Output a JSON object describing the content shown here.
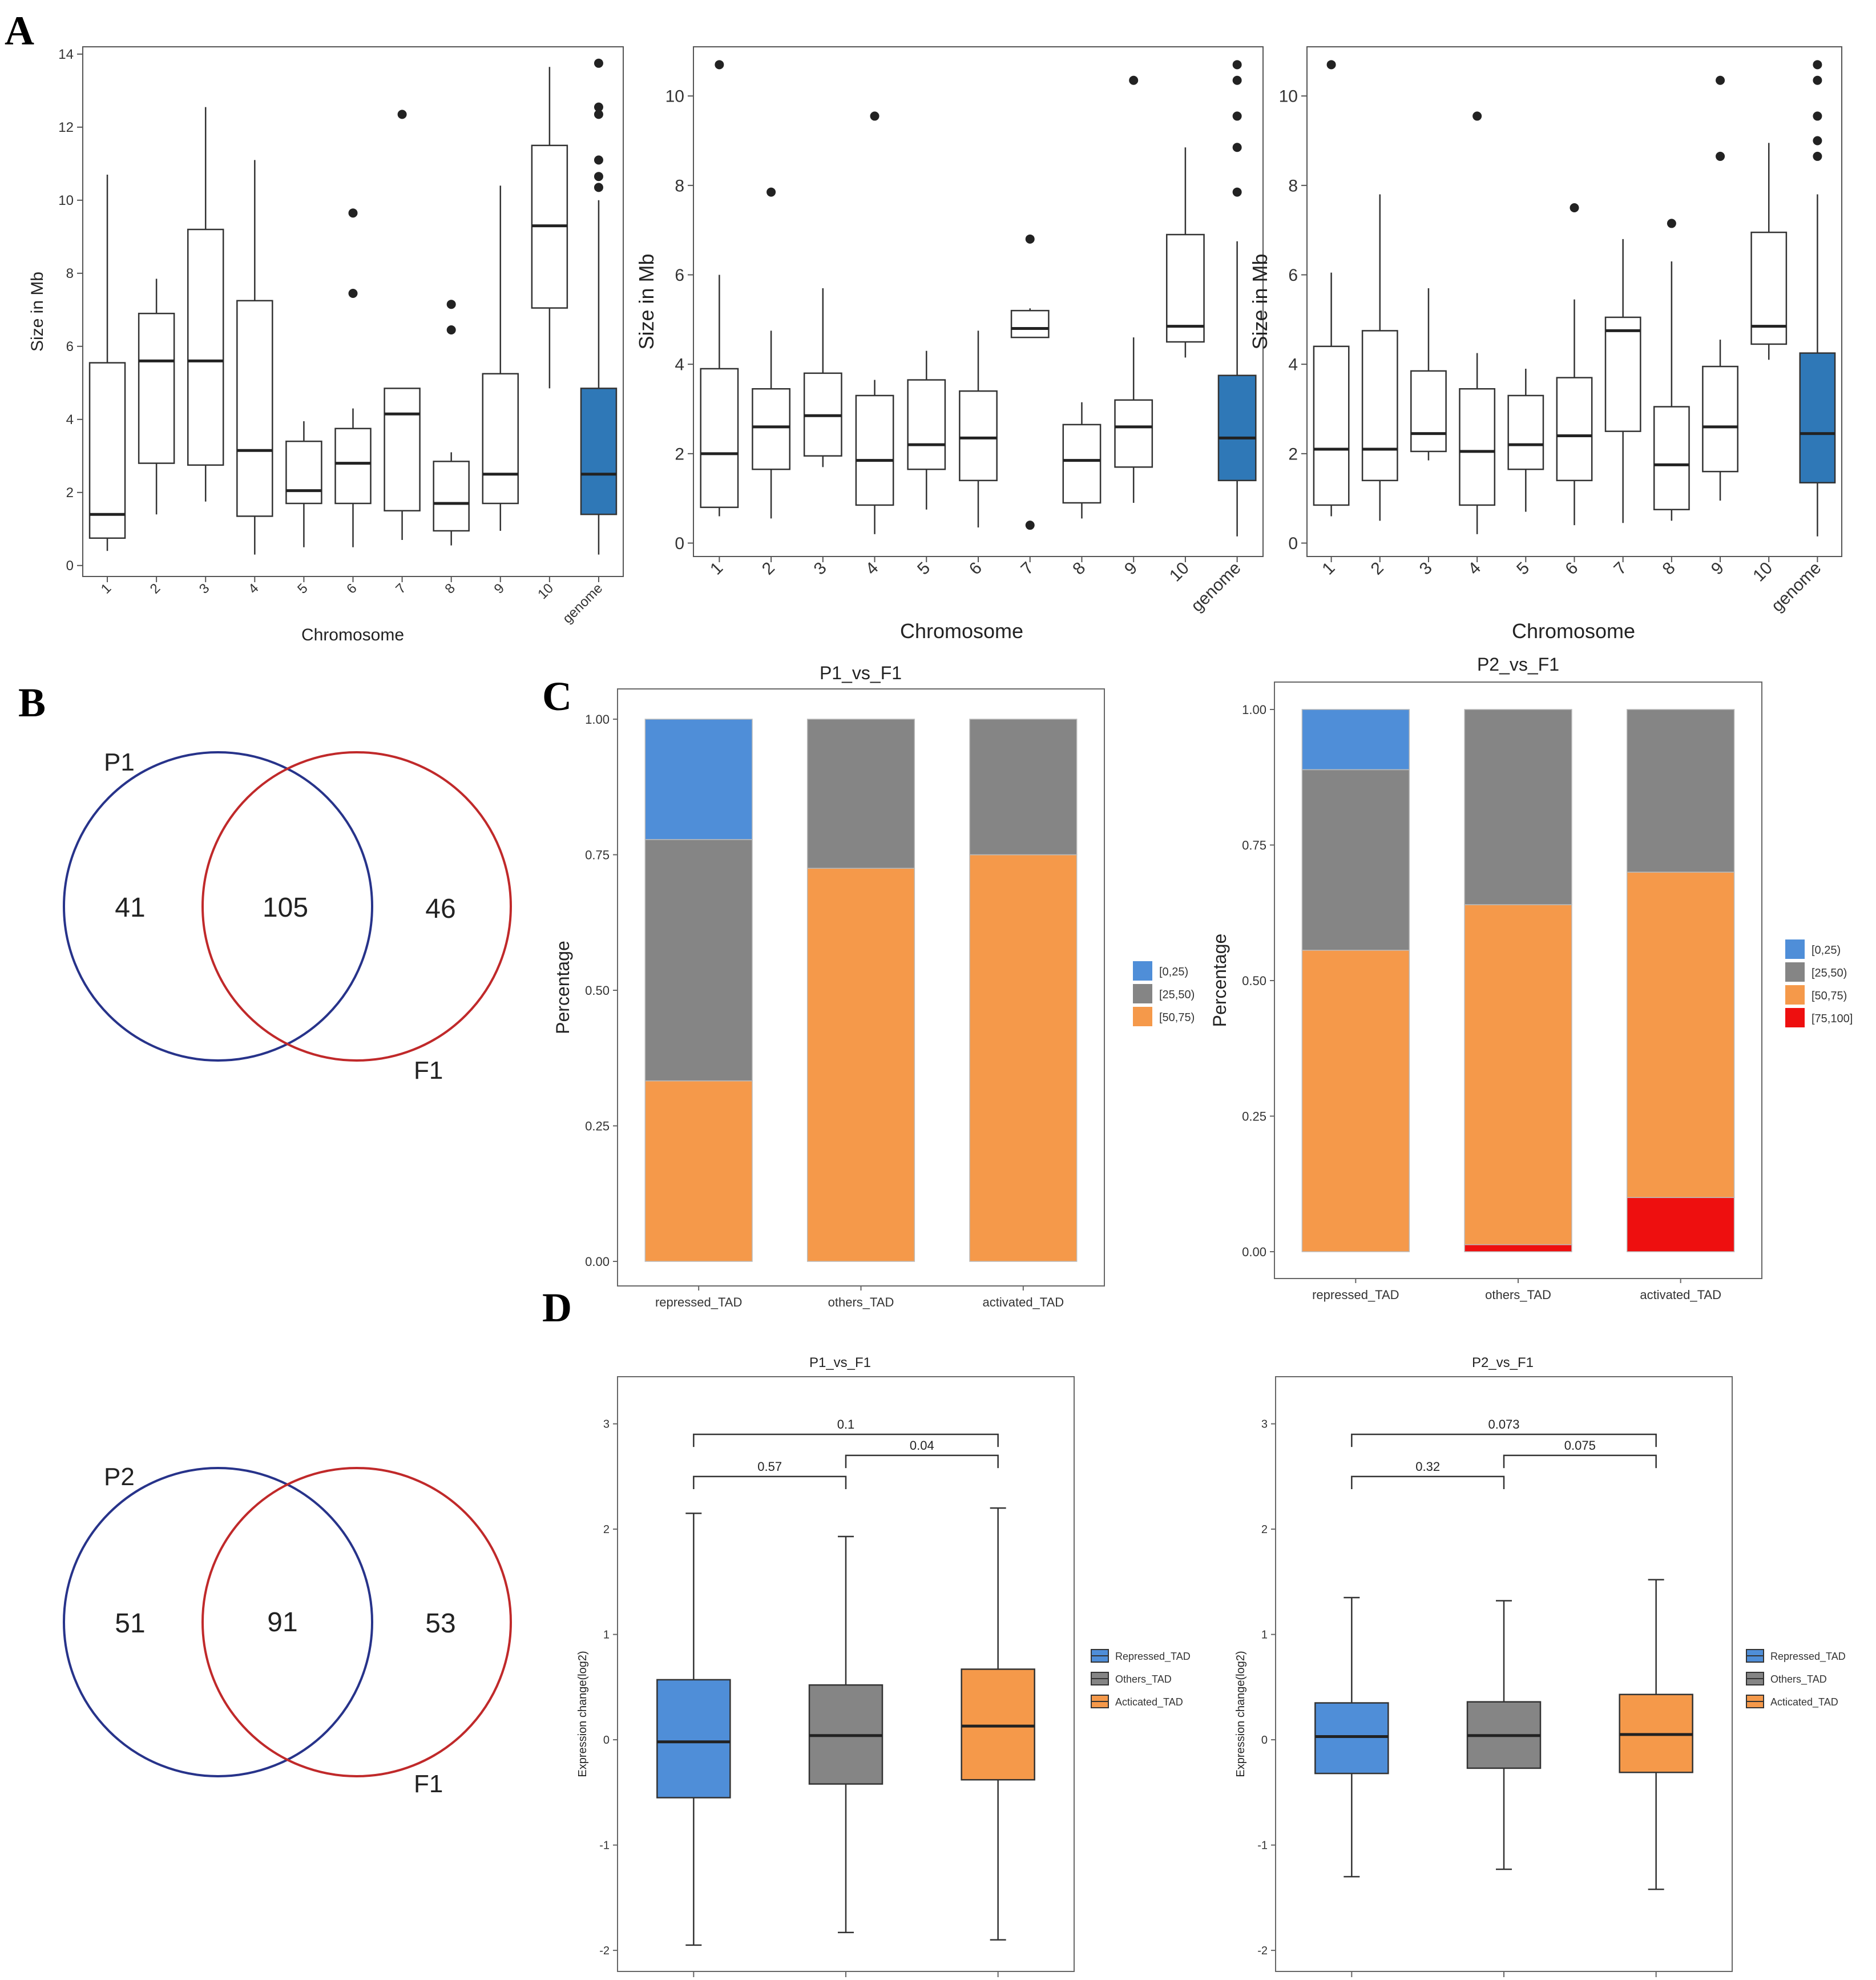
{
  "figure": {
    "panel_labels": {
      "a": "A",
      "b": "B",
      "c": "C",
      "d": "D"
    }
  },
  "colors": {
    "blue_box": "#2f78b7",
    "cat_blue": "#4f8ed8",
    "cat_gray": "#858585",
    "cat_orange": "#f5994a",
    "cat_red": "#ee0f0f",
    "venn_blue": "#27338a",
    "venn_red": "#c0292a",
    "axis": "#444444",
    "text": "#222222"
  },
  "chart_data": [
    {
      "id": "A1",
      "type": "boxplot",
      "xlabel": "Chromosome",
      "ylabel": "Size in Mb",
      "categories": [
        "1",
        "2",
        "3",
        "4",
        "5",
        "6",
        "7",
        "8",
        "9",
        "10",
        "genome"
      ],
      "ylim": [
        -0.3,
        14.2
      ],
      "yticks": [
        0,
        2,
        4,
        6,
        8,
        10,
        12,
        14
      ],
      "boxes": [
        {
          "lw": 0.4,
          "q1": 0.75,
          "med": 1.4,
          "q3": 5.55,
          "hw": 10.7,
          "out": []
        },
        {
          "lw": 1.4,
          "q1": 2.8,
          "med": 5.6,
          "q3": 6.9,
          "hw": 7.85,
          "out": []
        },
        {
          "lw": 1.75,
          "q1": 2.75,
          "med": 5.6,
          "q3": 9.2,
          "hw": 12.55,
          "out": []
        },
        {
          "lw": 0.3,
          "q1": 1.35,
          "med": 3.15,
          "q3": 7.25,
          "hw": 11.1,
          "out": []
        },
        {
          "lw": 0.5,
          "q1": 1.7,
          "med": 2.05,
          "q3": 3.4,
          "hw": 3.95,
          "out": []
        },
        {
          "lw": 0.5,
          "q1": 1.7,
          "med": 2.8,
          "q3": 3.75,
          "hw": 4.3,
          "out": [
            7.45,
            9.65
          ]
        },
        {
          "lw": 0.7,
          "q1": 1.5,
          "med": 4.15,
          "q3": 4.85,
          "hw": 4.85,
          "out": [
            12.35
          ]
        },
        {
          "lw": 0.55,
          "q1": 0.95,
          "med": 1.7,
          "q3": 2.85,
          "hw": 3.1,
          "out": [
            6.45,
            7.15
          ]
        },
        {
          "lw": 0.95,
          "q1": 1.7,
          "med": 2.5,
          "q3": 5.25,
          "hw": 10.4,
          "out": []
        },
        {
          "lw": 4.85,
          "q1": 7.05,
          "med": 9.3,
          "q3": 11.5,
          "hw": 13.65,
          "out": []
        },
        {
          "lw": 0.3,
          "q1": 1.4,
          "med": 2.5,
          "q3": 4.85,
          "hw": 10.0,
          "out": [
            10.35,
            10.65,
            11.1,
            12.35,
            12.55,
            13.75
          ],
          "filled": true
        }
      ]
    },
    {
      "id": "A2",
      "type": "boxplot",
      "xlabel": "Chromosome",
      "ylabel": "Size in Mb",
      "categories": [
        "1",
        "2",
        "3",
        "4",
        "5",
        "6",
        "7",
        "8",
        "9",
        "10",
        "genome"
      ],
      "ylim": [
        -0.3,
        11.1
      ],
      "yticks": [
        0,
        2,
        4,
        6,
        8,
        10
      ],
      "boxes": [
        {
          "lw": 0.6,
          "q1": 0.8,
          "med": 2.0,
          "q3": 3.9,
          "hw": 6.0,
          "out": [
            10.7
          ]
        },
        {
          "lw": 0.55,
          "q1": 1.65,
          "med": 2.6,
          "q3": 3.45,
          "hw": 4.75,
          "out": [
            7.85
          ]
        },
        {
          "lw": 1.7,
          "q1": 1.95,
          "med": 2.85,
          "q3": 3.8,
          "hw": 5.7,
          "out": []
        },
        {
          "lw": 0.2,
          "q1": 0.85,
          "med": 1.85,
          "q3": 3.3,
          "hw": 3.65,
          "out": [
            9.55
          ]
        },
        {
          "lw": 0.75,
          "q1": 1.65,
          "med": 2.2,
          "q3": 3.65,
          "hw": 4.3,
          "out": []
        },
        {
          "lw": 0.35,
          "q1": 1.4,
          "med": 2.35,
          "q3": 3.4,
          "hw": 4.75,
          "out": []
        },
        {
          "lw": 4.6,
          "q1": 4.6,
          "med": 4.8,
          "q3": 5.2,
          "hw": 5.25,
          "out": [
            0.4,
            6.8
          ]
        },
        {
          "lw": 0.55,
          "q1": 0.9,
          "med": 1.85,
          "q3": 2.65,
          "hw": 3.15,
          "out": []
        },
        {
          "lw": 0.9,
          "q1": 1.7,
          "med": 2.6,
          "q3": 3.2,
          "hw": 4.6,
          "out": [
            10.35
          ]
        },
        {
          "lw": 4.15,
          "q1": 4.5,
          "med": 4.85,
          "q3": 6.9,
          "hw": 8.85,
          "out": []
        },
        {
          "lw": 0.15,
          "q1": 1.4,
          "med": 2.35,
          "q3": 3.75,
          "hw": 6.75,
          "out": [
            7.85,
            8.85,
            9.55,
            10.35,
            10.7
          ],
          "filled": true
        }
      ]
    },
    {
      "id": "A3",
      "type": "boxplot",
      "xlabel": "Chromosome",
      "ylabel": "Size in Mb",
      "categories": [
        "1",
        "2",
        "3",
        "4",
        "5",
        "6",
        "7",
        "8",
        "9",
        "10",
        "genome"
      ],
      "ylim": [
        -0.3,
        11.1
      ],
      "yticks": [
        0,
        2,
        4,
        6,
        8,
        10
      ],
      "boxes": [
        {
          "lw": 0.6,
          "q1": 0.85,
          "med": 2.1,
          "q3": 4.4,
          "hw": 6.05,
          "out": [
            10.7
          ]
        },
        {
          "lw": 0.5,
          "q1": 1.4,
          "med": 2.1,
          "q3": 4.75,
          "hw": 7.8,
          "out": []
        },
        {
          "lw": 1.85,
          "q1": 2.05,
          "med": 2.45,
          "q3": 3.85,
          "hw": 5.7,
          "out": []
        },
        {
          "lw": 0.2,
          "q1": 0.85,
          "med": 2.05,
          "q3": 3.45,
          "hw": 4.25,
          "out": [
            9.55
          ]
        },
        {
          "lw": 0.7,
          "q1": 1.65,
          "med": 2.2,
          "q3": 3.3,
          "hw": 3.9,
          "out": []
        },
        {
          "lw": 0.4,
          "q1": 1.4,
          "med": 2.4,
          "q3": 3.7,
          "hw": 5.45,
          "out": [
            7.5
          ]
        },
        {
          "lw": 0.45,
          "q1": 2.5,
          "med": 4.75,
          "q3": 5.05,
          "hw": 6.8,
          "out": []
        },
        {
          "lw": 0.5,
          "q1": 0.75,
          "med": 1.75,
          "q3": 3.05,
          "hw": 6.3,
          "out": [
            7.15
          ]
        },
        {
          "lw": 0.95,
          "q1": 1.6,
          "med": 2.6,
          "q3": 3.95,
          "hw": 4.55,
          "out": [
            8.65,
            10.35
          ]
        },
        {
          "lw": 4.1,
          "q1": 4.45,
          "med": 4.85,
          "q3": 6.95,
          "hw": 8.95,
          "out": []
        },
        {
          "lw": 0.15,
          "q1": 1.35,
          "med": 2.45,
          "q3": 4.25,
          "hw": 7.8,
          "out": [
            8.65,
            9.0,
            9.55,
            10.35,
            10.7
          ],
          "filled": true
        }
      ]
    },
    {
      "id": "C1",
      "type": "bar",
      "stacked": true,
      "title": "P1_vs_F1",
      "ylabel": "Percentage",
      "categories": [
        "repressed_TAD",
        "others_TAD",
        "activated_TAD"
      ],
      "ylim": [
        0,
        1
      ],
      "yticks": [
        "0.00",
        "0.25",
        "0.50",
        "0.75",
        "1.00"
      ],
      "legend": [
        "[0,25)",
        "[25,50)",
        "[50,75)"
      ],
      "series": [
        {
          "name": "[50,75)",
          "color": "#f5994a",
          "values": [
            0.333,
            0.725,
            0.75
          ]
        },
        {
          "name": "[25,50)",
          "color": "#858585",
          "values": [
            0.445,
            0.275,
            0.25
          ]
        },
        {
          "name": "[0,25)",
          "color": "#4f8ed8",
          "values": [
            0.222,
            0,
            0
          ]
        }
      ]
    },
    {
      "id": "C2",
      "type": "bar",
      "stacked": true,
      "title": "P2_vs_F1",
      "ylabel": "Percentage",
      "categories": [
        "repressed_TAD",
        "others_TAD",
        "activated_TAD"
      ],
      "ylim": [
        0,
        1
      ],
      "yticks": [
        "0.00",
        "0.25",
        "0.50",
        "0.75",
        "1.00"
      ],
      "legend": [
        "[0,25)",
        "[25,50)",
        "[50,75)",
        "[75,100]"
      ],
      "series": [
        {
          "name": "[75,100]",
          "color": "#ee0f0f",
          "values": [
            0,
            0.013,
            0.1
          ]
        },
        {
          "name": "[50,75)",
          "color": "#f5994a",
          "values": [
            0.556,
            0.627,
            0.6
          ]
        },
        {
          "name": "[25,50)",
          "color": "#858585",
          "values": [
            0.333,
            0.36,
            0.3
          ]
        },
        {
          "name": "[0,25)",
          "color": "#4f8ed8",
          "values": [
            0.111,
            0,
            0
          ]
        }
      ]
    },
    {
      "id": "D1",
      "type": "boxplot",
      "title": "P1_vs_F1",
      "ylabel": "Expression change(log2)",
      "ylim": [
        -2.2,
        3.35
      ],
      "yticks": [
        "-2",
        "-1",
        "0",
        "1",
        "2",
        "3"
      ],
      "legend": [
        "Repressed_TAD",
        "Others_TAD",
        "Acticated_TAD"
      ],
      "boxes": [
        {
          "name": "Repressed_TAD",
          "color": "#4f8ed8",
          "lw": -1.95,
          "q1": -0.55,
          "med": -0.02,
          "q3": 0.57,
          "hw": 2.15
        },
        {
          "name": "Others_TAD",
          "color": "#858585",
          "lw": -1.83,
          "q1": -0.42,
          "med": 0.04,
          "q3": 0.52,
          "hw": 1.93
        },
        {
          "name": "Acticated_TAD",
          "color": "#f5994a",
          "lw": -1.9,
          "q1": -0.38,
          "med": 0.13,
          "q3": 0.67,
          "hw": 2.2
        }
      ],
      "comparisons": [
        {
          "a": 0,
          "b": 1,
          "label": "0.57",
          "level": 0
        },
        {
          "a": 1,
          "b": 2,
          "label": "0.04",
          "level": 1
        },
        {
          "a": 0,
          "b": 2,
          "label": "0.1",
          "level": 2
        }
      ]
    },
    {
      "id": "D2",
      "type": "boxplot",
      "title": "P2_vs_F1",
      "ylabel": "Expression change(log2)",
      "ylim": [
        -2.2,
        3.35
      ],
      "yticks": [
        "-2",
        "-1",
        "0",
        "1",
        "2",
        "3"
      ],
      "legend": [
        "Repressed_TAD",
        "Others_TAD",
        "Acticated_TAD"
      ],
      "boxes": [
        {
          "name": "Repressed_TAD",
          "color": "#4f8ed8",
          "lw": -1.3,
          "q1": -0.32,
          "med": 0.03,
          "q3": 0.35,
          "hw": 1.35
        },
        {
          "name": "Others_TAD",
          "color": "#858585",
          "lw": -1.23,
          "q1": -0.27,
          "med": 0.04,
          "q3": 0.36,
          "hw": 1.32
        },
        {
          "name": "Acticated_TAD",
          "color": "#f5994a",
          "lw": -1.42,
          "q1": -0.31,
          "med": 0.05,
          "q3": 0.43,
          "hw": 1.52
        }
      ],
      "comparisons": [
        {
          "a": 0,
          "b": 1,
          "label": "0.32",
          "level": 0
        },
        {
          "a": 1,
          "b": 2,
          "label": "0.075",
          "level": 1
        },
        {
          "a": 0,
          "b": 2,
          "label": "0.073",
          "level": 2
        }
      ]
    }
  ],
  "venns": [
    {
      "id": "B1",
      "left_label": "P1",
      "right_label": "F1",
      "left_only": "41",
      "overlap": "105",
      "right_only": "46"
    },
    {
      "id": "B2",
      "left_label": "P2",
      "right_label": "F1",
      "left_only": "51",
      "overlap": "91",
      "right_only": "53"
    }
  ]
}
